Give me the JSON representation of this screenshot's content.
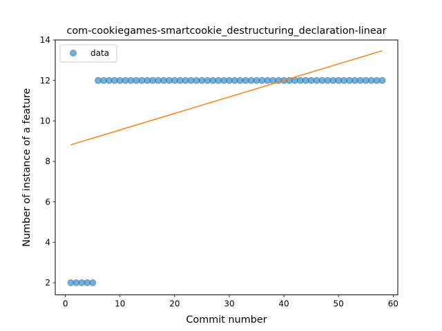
{
  "chart_data": {
    "type": "scatter",
    "title": "com-cookiegames-smartcookie_destructuring_declaration-linear",
    "xlabel": "Commit number",
    "ylabel": "Number of instance of a feature",
    "xlim": [
      -1.85,
      60.85
    ],
    "ylim": [
      1.4,
      14.0
    ],
    "xticks": [
      0,
      10,
      20,
      30,
      40,
      50,
      60
    ],
    "yticks": [
      2,
      4,
      6,
      8,
      10,
      12,
      14
    ],
    "grid": false,
    "legend_position": "upper left",
    "series": [
      {
        "name": "data",
        "kind": "scatter",
        "color": "#1f77b4",
        "x": [
          1,
          2,
          3,
          4,
          5,
          6,
          7,
          8,
          9,
          10,
          11,
          12,
          13,
          14,
          15,
          16,
          17,
          18,
          19,
          20,
          21,
          22,
          23,
          24,
          25,
          26,
          27,
          28,
          29,
          30,
          31,
          32,
          33,
          34,
          35,
          36,
          37,
          38,
          39,
          40,
          41,
          42,
          43,
          44,
          45,
          46,
          47,
          48,
          49,
          50,
          51,
          52,
          53,
          54,
          55,
          56,
          57,
          58
        ],
        "y": [
          2,
          2,
          2,
          2,
          2,
          12,
          12,
          12,
          12,
          12,
          12,
          12,
          12,
          12,
          12,
          12,
          12,
          12,
          12,
          12,
          12,
          12,
          12,
          12,
          12,
          12,
          12,
          12,
          12,
          12,
          12,
          12,
          12,
          12,
          12,
          12,
          12,
          12,
          12,
          12,
          12,
          12,
          12,
          12,
          12,
          12,
          12,
          12,
          12,
          12,
          12,
          12,
          12,
          12,
          12,
          12,
          12,
          12
        ]
      },
      {
        "kind": "line",
        "color": "#ff7f0e",
        "x": [
          1,
          58
        ],
        "y": [
          8.82,
          13.47
        ]
      }
    ]
  }
}
